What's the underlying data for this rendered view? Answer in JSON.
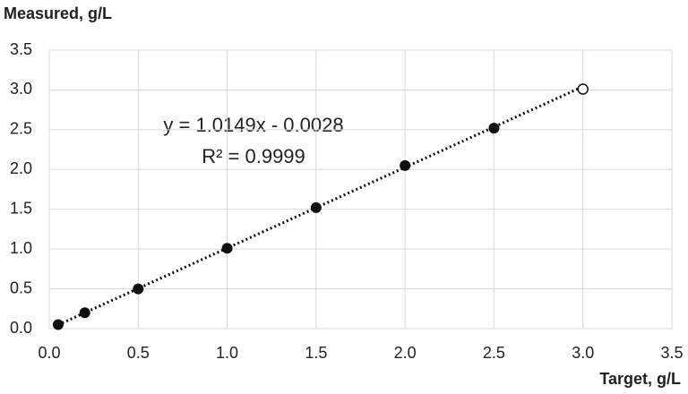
{
  "chart_data": {
    "type": "scatter",
    "y_label": "Measured, g/L",
    "x_label": "Target, g/L",
    "xlim": [
      0,
      3.5
    ],
    "ylim": [
      0,
      3.5
    ],
    "xticks": [
      {
        "value": 0,
        "label": "0.0"
      },
      0.5,
      {
        "value": 1,
        "label": "1.0"
      },
      1.5,
      {
        "value": 2,
        "label": "2.0"
      },
      2.5,
      {
        "value": 3,
        "label": "3.0"
      },
      3.5
    ],
    "yticks": [
      {
        "value": 0,
        "label": "0.0"
      },
      0.5,
      {
        "value": 1,
        "label": "1.0"
      },
      1.5,
      {
        "value": 2,
        "label": "2.0"
      },
      2.5,
      {
        "value": 3,
        "label": "3.0"
      },
      3.5
    ],
    "grid": true,
    "series": [
      {
        "color": "#111111",
        "marker": "filled",
        "x": [
          0.05,
          0.2,
          0.5,
          1.0,
          1.5,
          2.0,
          2.5
        ],
        "values": [
          0.05,
          0.2,
          0.5,
          1.01,
          1.52,
          2.05,
          2.52
        ]
      },
      {
        "color": "#111111",
        "marker": "open",
        "x": [
          3.0
        ],
        "values": [
          3.01
        ]
      }
    ],
    "trendline": {
      "slope": 1.0149,
      "intercept": -0.0028,
      "equation": "y = 1.0149x - 0.0028",
      "r_squared": "R² = 0.9999",
      "color": "#111111"
    }
  }
}
